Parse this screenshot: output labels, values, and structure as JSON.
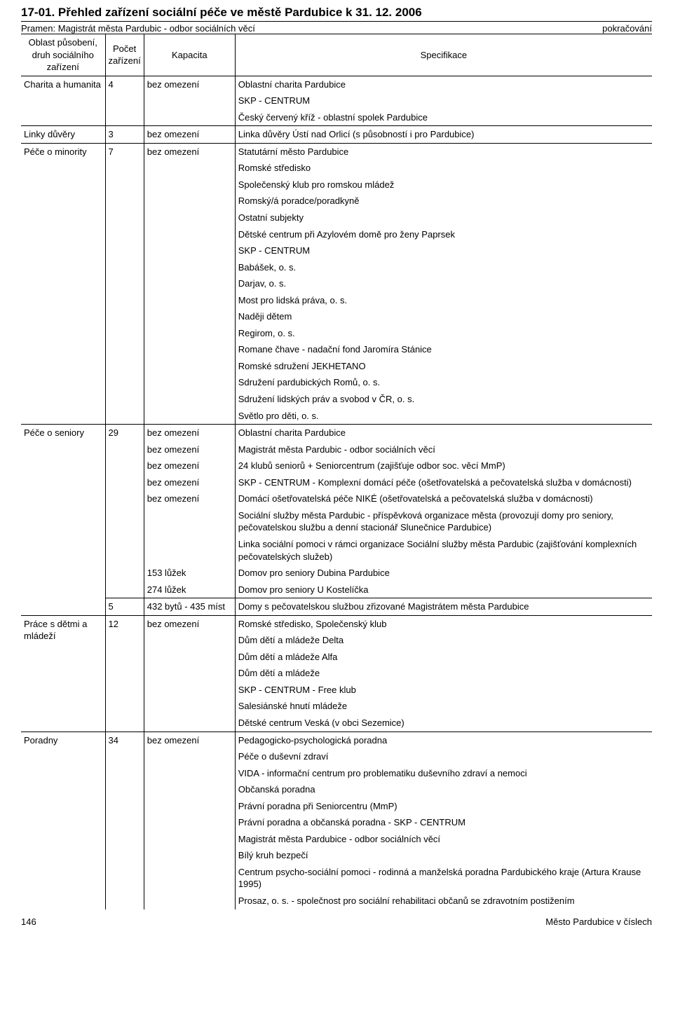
{
  "title": "17-01. Přehled zařízení sociální péče ve městě Pardubice k 31. 12. 2006",
  "source": "Pramen: Magistrát města Pardubic - odbor sociálních věcí",
  "continuation": "pokračování",
  "headers": {
    "area": "Oblast působení, druh sociálního zařízení",
    "count": "Počet zařízení",
    "capacity": "Kapacita",
    "spec": "Specifikace"
  },
  "groups": [
    {
      "area": "Charita a humanita",
      "count": "4",
      "capacity": "bez omezení",
      "specs": [
        "Oblastní charita Pardubice",
        "SKP - CENTRUM",
        "Český červený kříž - oblastní spolek Pardubice"
      ]
    },
    {
      "area": "Linky důvěry",
      "count": "3",
      "capacity": "bez omezení",
      "specs": [
        "Linka důvěry Ústí nad Orlicí (s působností i pro Pardubice)"
      ]
    },
    {
      "area": "Péče o minority",
      "count": "7",
      "capacity": "bez omezení",
      "specs": [
        "Statutární město Pardubice",
        "Romské středisko",
        "Společenský klub pro romskou mládež",
        "Romský/á poradce/poradkyně",
        "Ostatní subjekty",
        "Dětské centrum při Azylovém domě pro ženy Paprsek",
        "SKP - CENTRUM",
        "Babášek, o. s.",
        "Darjav, o. s.",
        "Most pro lidská práva, o. s.",
        "Naději dětem",
        "Regirom, o. s.",
        "Romane čhave - nadační fond Jaromíra Stánice",
        "Romské sdružení JEKHETANO",
        "Sdružení pardubických Romů, o. s.",
        "Sdružení lidských práv a svobod v ČR, o. s.",
        "Světlo pro děti, o. s."
      ]
    },
    {
      "area": "Péče o seniory",
      "subrows": [
        {
          "count": "29",
          "capacity": "bez omezení",
          "spec": "Oblastní charita Pardubice"
        },
        {
          "capacity": "bez omezení",
          "spec": "Magistrát města Pardubic - odbor sociálních věcí"
        },
        {
          "capacity": "bez omezení",
          "spec": "24 klubů seniorů + Seniorcentrum (zajišťuje odbor soc. věcí MmP)"
        },
        {
          "capacity": "bez omezení",
          "spec": "SKP - CENTRUM - Komplexní domácí péče (ošetřovatelská a pečovatelská služba v domácnosti)"
        },
        {
          "capacity": "bez omezení",
          "spec": "Domácí ošetřovatelská péče NIKÉ (ošetřovatelská a pečovatelská služba v domácnosti)"
        },
        {
          "spec": "Sociální služby města Pardubic - příspěvková organizace města (provozují domy pro seniory, pečovatelskou službu a denní stacionář Slunečnice Pardubice)"
        },
        {
          "spec": "Linka sociální pomoci v rámci organizace Sociální služby města Pardubic (zajišťování komplexních pečovatelských služeb)"
        },
        {
          "capacity": "153 lůžek",
          "spec": "Domov pro seniory Dubina Pardubice"
        },
        {
          "capacity": "274 lůžek",
          "spec": "Domov pro seniory U Kostelíčka"
        },
        {
          "count": "5",
          "capacity": "432 bytů - 435 míst",
          "spec": "Domy s pečovatelskou službou zřizované Magistrátem města Pardubice",
          "subTop": true
        }
      ]
    },
    {
      "area": "Práce s dětmi a mládeží",
      "count": "12",
      "capacity": "bez omezení",
      "specs": [
        "Romské středisko, Společenský klub",
        "Dům dětí a mládeže Delta",
        "Dům dětí a mládeže Alfa",
        "Dům dětí a mládeže",
        "SKP - CENTRUM - Free klub",
        "Salesiánské hnutí mládeže",
        "Dětské centrum Veská (v obci Sezemice)"
      ]
    },
    {
      "area": "Poradny",
      "count": "34",
      "capacity": "bez omezení",
      "specs": [
        "Pedagogicko-psychologická poradna",
        "Péče o duševní zdraví",
        "VIDA - informační centrum pro problematiku duševního zdraví a nemoci",
        "Občanská poradna",
        "Právní poradna při Seniorcentru (MmP)",
        "Právní poradna a občanská poradna - SKP - CENTRUM",
        "Magistrát města Pardubice - odbor sociálních věcí",
        "Bílý kruh bezpečí",
        "Centrum psycho-sociální pomoci - rodinná a manželská poradna Pardubického kraje (Artura Krause 1995)",
        "Prosaz, o. s. - společnost pro sociální rehabilitaci občanů se zdravotním postižením"
      ]
    }
  ],
  "footer": {
    "pageNum": "146",
    "footerRight": "Město Pardubice v číslech"
  }
}
